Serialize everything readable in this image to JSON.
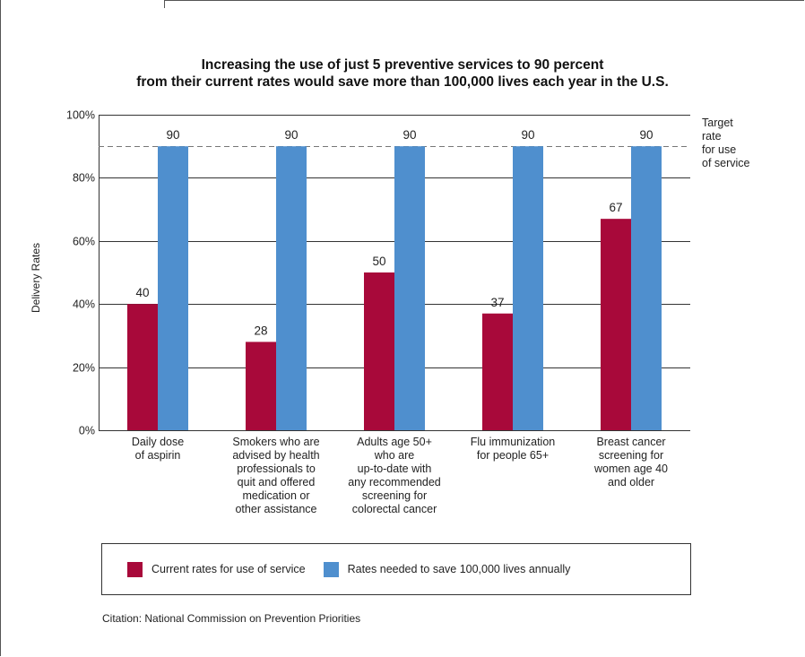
{
  "title_line1": "Increasing the use of just 5 preventive services to 90 percent",
  "title_line2": "from their current rates would save more than 100,000 lives each year in the U.S.",
  "target_note": [
    "Target",
    "rate",
    "for use",
    "of service"
  ],
  "citation": "Citation: National Commission on Prevention Priorities",
  "colors": {
    "current": "#a8093a",
    "needed": "#4f8fce"
  },
  "legend": {
    "current": "Current rates for use of service",
    "needed": "Rates needed to save 100,000 lives annually"
  },
  "chart_data": {
    "type": "bar",
    "ylabel": "Delivery Rates",
    "ylim": [
      0,
      100
    ],
    "yticks": [
      "0%",
      "20%",
      "40%",
      "60%",
      "80%",
      "100%"
    ],
    "target_value": 90,
    "grid": true,
    "categories": [
      [
        "Daily dose",
        "of aspirin"
      ],
      [
        "Smokers who are",
        "advised by health",
        "professionals to",
        "quit and offered",
        "medication or",
        "other assistance"
      ],
      [
        "Adults age 50+",
        "who are",
        "up-to-date with",
        "any recommended",
        "screening for",
        "colorectal cancer"
      ],
      [
        "Flu immunization",
        "for people 65+"
      ],
      [
        "Breast cancer",
        "screening for",
        "women age 40",
        "and older"
      ]
    ],
    "series": [
      {
        "name": "Current rates for use of service",
        "values": [
          40,
          28,
          50,
          37,
          67
        ],
        "labels": [
          "40",
          "28",
          "50",
          "37",
          "67"
        ]
      },
      {
        "name": "Rates needed to save 100,000 lives annually",
        "values": [
          90,
          90,
          90,
          90,
          90
        ],
        "labels": [
          "90",
          "90",
          "90",
          "90",
          "90"
        ]
      }
    ]
  }
}
